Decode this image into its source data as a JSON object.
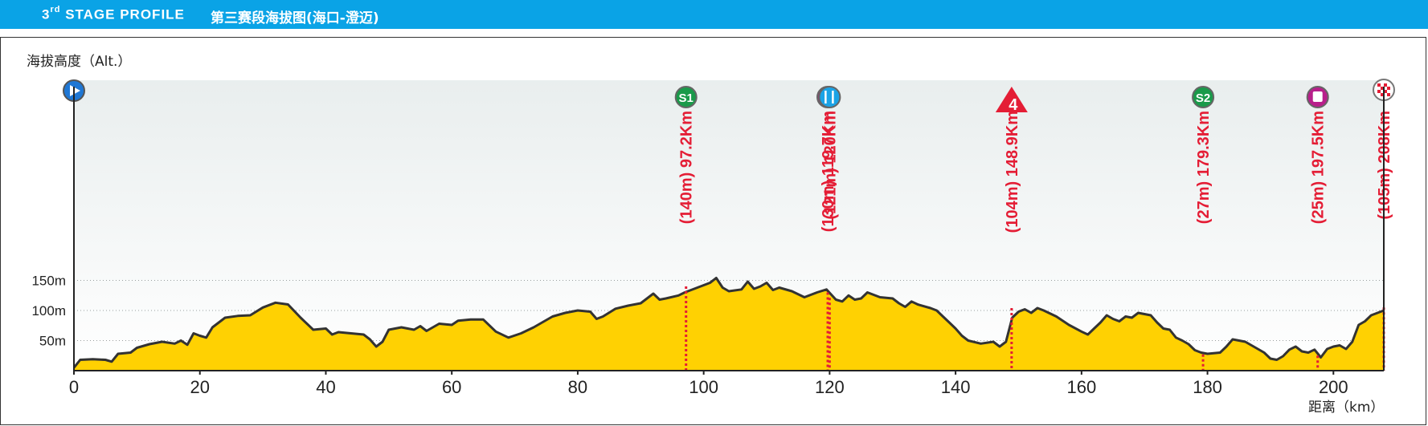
{
  "header": {
    "stage_num": "3",
    "stage_suffix": "rd",
    "stage_title": " STAGE PROFILE",
    "stage_title_cn": "第三赛段海拔图(海口-澄迈)"
  },
  "chart_data": {
    "type": "area",
    "title": "3rd STAGE PROFILE 第三赛段海拔图(海口-澄迈)",
    "ylabel": "海拔高度（Alt.）",
    "xlabel": "距离（km）",
    "xlim": [
      0,
      208
    ],
    "ylim": [
      0,
      160
    ],
    "x_ticks": [
      0,
      20,
      40,
      60,
      80,
      100,
      120,
      140,
      160,
      180,
      200
    ],
    "y_ticks": [
      {
        "value": 50,
        "label": "50m"
      },
      {
        "value": 100,
        "label": "100m"
      },
      {
        "value": 150,
        "label": "150m"
      }
    ],
    "grid": true,
    "colors": {
      "fill": "#ffd102",
      "outline": "#333333",
      "marker_line": "#e41d35",
      "sky_top": "#e9eeee"
    },
    "profile": [
      [
        0,
        5
      ],
      [
        1,
        18
      ],
      [
        3,
        19
      ],
      [
        5,
        18
      ],
      [
        6,
        15
      ],
      [
        7,
        28
      ],
      [
        9,
        30
      ],
      [
        10,
        38
      ],
      [
        12,
        44
      ],
      [
        14,
        48
      ],
      [
        16,
        45
      ],
      [
        17,
        50
      ],
      [
        18,
        43
      ],
      [
        19,
        62
      ],
      [
        20,
        58
      ],
      [
        21,
        55
      ],
      [
        22,
        72
      ],
      [
        24,
        88
      ],
      [
        26,
        91
      ],
      [
        28,
        92
      ],
      [
        30,
        105
      ],
      [
        32,
        113
      ],
      [
        34,
        110
      ],
      [
        36,
        88
      ],
      [
        38,
        68
      ],
      [
        40,
        70
      ],
      [
        41,
        60
      ],
      [
        42,
        64
      ],
      [
        44,
        62
      ],
      [
        46,
        60
      ],
      [
        47,
        52
      ],
      [
        48,
        40
      ],
      [
        49,
        48
      ],
      [
        50,
        68
      ],
      [
        52,
        72
      ],
      [
        54,
        68
      ],
      [
        55,
        74
      ],
      [
        56,
        66
      ],
      [
        58,
        78
      ],
      [
        60,
        76
      ],
      [
        61,
        83
      ],
      [
        63,
        85
      ],
      [
        65,
        85
      ],
      [
        66,
        75
      ],
      [
        67,
        65
      ],
      [
        69,
        55
      ],
      [
        71,
        62
      ],
      [
        73,
        72
      ],
      [
        76,
        90
      ],
      [
        78,
        96
      ],
      [
        80,
        100
      ],
      [
        82,
        98
      ],
      [
        83,
        86
      ],
      [
        84,
        90
      ],
      [
        86,
        103
      ],
      [
        88,
        108
      ],
      [
        90,
        112
      ],
      [
        92,
        128
      ],
      [
        93,
        118
      ],
      [
        94,
        120
      ],
      [
        96,
        125
      ],
      [
        97,
        130
      ],
      [
        99,
        138
      ],
      [
        100,
        142
      ],
      [
        101,
        146
      ],
      [
        102,
        154
      ],
      [
        103,
        138
      ],
      [
        104,
        132
      ],
      [
        106,
        135
      ],
      [
        107,
        148
      ],
      [
        108,
        136
      ],
      [
        109,
        140
      ],
      [
        110,
        146
      ],
      [
        111,
        134
      ],
      [
        112,
        138
      ],
      [
        114,
        132
      ],
      [
        116,
        122
      ],
      [
        118,
        130
      ],
      [
        119.5,
        135
      ],
      [
        121,
        118
      ],
      [
        122,
        115
      ],
      [
        123,
        125
      ],
      [
        124,
        118
      ],
      [
        125,
        120
      ],
      [
        126,
        130
      ],
      [
        128,
        122
      ],
      [
        130,
        120
      ],
      [
        131,
        112
      ],
      [
        132,
        106
      ],
      [
        133,
        115
      ],
      [
        134,
        110
      ],
      [
        136,
        104
      ],
      [
        137,
        100
      ],
      [
        138,
        90
      ],
      [
        139,
        80
      ],
      [
        140,
        70
      ],
      [
        141,
        58
      ],
      [
        142,
        50
      ],
      [
        144,
        45
      ],
      [
        146,
        48
      ],
      [
        147,
        40
      ],
      [
        148,
        48
      ],
      [
        149,
        88
      ],
      [
        150,
        98
      ],
      [
        151,
        102
      ],
      [
        152,
        96
      ],
      [
        153,
        104
      ],
      [
        154,
        100
      ],
      [
        156,
        90
      ],
      [
        158,
        76
      ],
      [
        160,
        65
      ],
      [
        161,
        60
      ],
      [
        162,
        70
      ],
      [
        163,
        80
      ],
      [
        164,
        92
      ],
      [
        165,
        86
      ],
      [
        166,
        82
      ],
      [
        167,
        90
      ],
      [
        168,
        88
      ],
      [
        169,
        96
      ],
      [
        171,
        92
      ],
      [
        172,
        80
      ],
      [
        173,
        70
      ],
      [
        174,
        68
      ],
      [
        175,
        55
      ],
      [
        176,
        50
      ],
      [
        177,
        44
      ],
      [
        178,
        34
      ],
      [
        179,
        30
      ],
      [
        180,
        28
      ],
      [
        182,
        30
      ],
      [
        183,
        40
      ],
      [
        184,
        52
      ],
      [
        185,
        50
      ],
      [
        186,
        48
      ],
      [
        188,
        36
      ],
      [
        189,
        30
      ],
      [
        190,
        20
      ],
      [
        191,
        18
      ],
      [
        192,
        24
      ],
      [
        193,
        35
      ],
      [
        194,
        40
      ],
      [
        195,
        32
      ],
      [
        196,
        30
      ],
      [
        197,
        35
      ],
      [
        198,
        22
      ],
      [
        199,
        36
      ],
      [
        200,
        40
      ],
      [
        201,
        42
      ],
      [
        202,
        36
      ],
      [
        203,
        48
      ],
      [
        204,
        76
      ],
      [
        205,
        82
      ],
      [
        206,
        92
      ],
      [
        207,
        96
      ],
      [
        208,
        100
      ]
    ],
    "markers": [
      {
        "x": 97.2,
        "alt": 140,
        "label": "(140m) 97.2Km",
        "icon": "sprint-1-icon",
        "badge": "S1",
        "color": "#1a9a4a"
      },
      {
        "x": 119.7,
        "alt": 130,
        "label": "(130m) 119.7Km",
        "icon": "feed-zone-icon",
        "badge": "",
        "color": "#b81f8b"
      },
      {
        "x": 120,
        "alt": 121,
        "label": "(121m) 120Km",
        "icon": "restaurant-icon",
        "badge": "",
        "color": "#1aa3e6"
      },
      {
        "x": 148.9,
        "alt": 104,
        "label": "(104m) 148.9Km",
        "icon": "kom-4-icon",
        "badge": "4",
        "color": "#e41d35"
      },
      {
        "x": 179.3,
        "alt": 27,
        "label": "(27m) 179.3Km",
        "icon": "sprint-2-icon",
        "badge": "S2",
        "color": "#1a9a4a"
      },
      {
        "x": 197.5,
        "alt": 25,
        "label": "(25m) 197.5Km",
        "icon": "feed-zone-icon",
        "badge": "",
        "color": "#b81f8b"
      },
      {
        "x": 208,
        "alt": 105,
        "label": "(105m) 208Km",
        "icon": "finish-flag-icon",
        "badge": "",
        "color": "#e41d35"
      }
    ],
    "start_icon": "start-play-icon"
  }
}
